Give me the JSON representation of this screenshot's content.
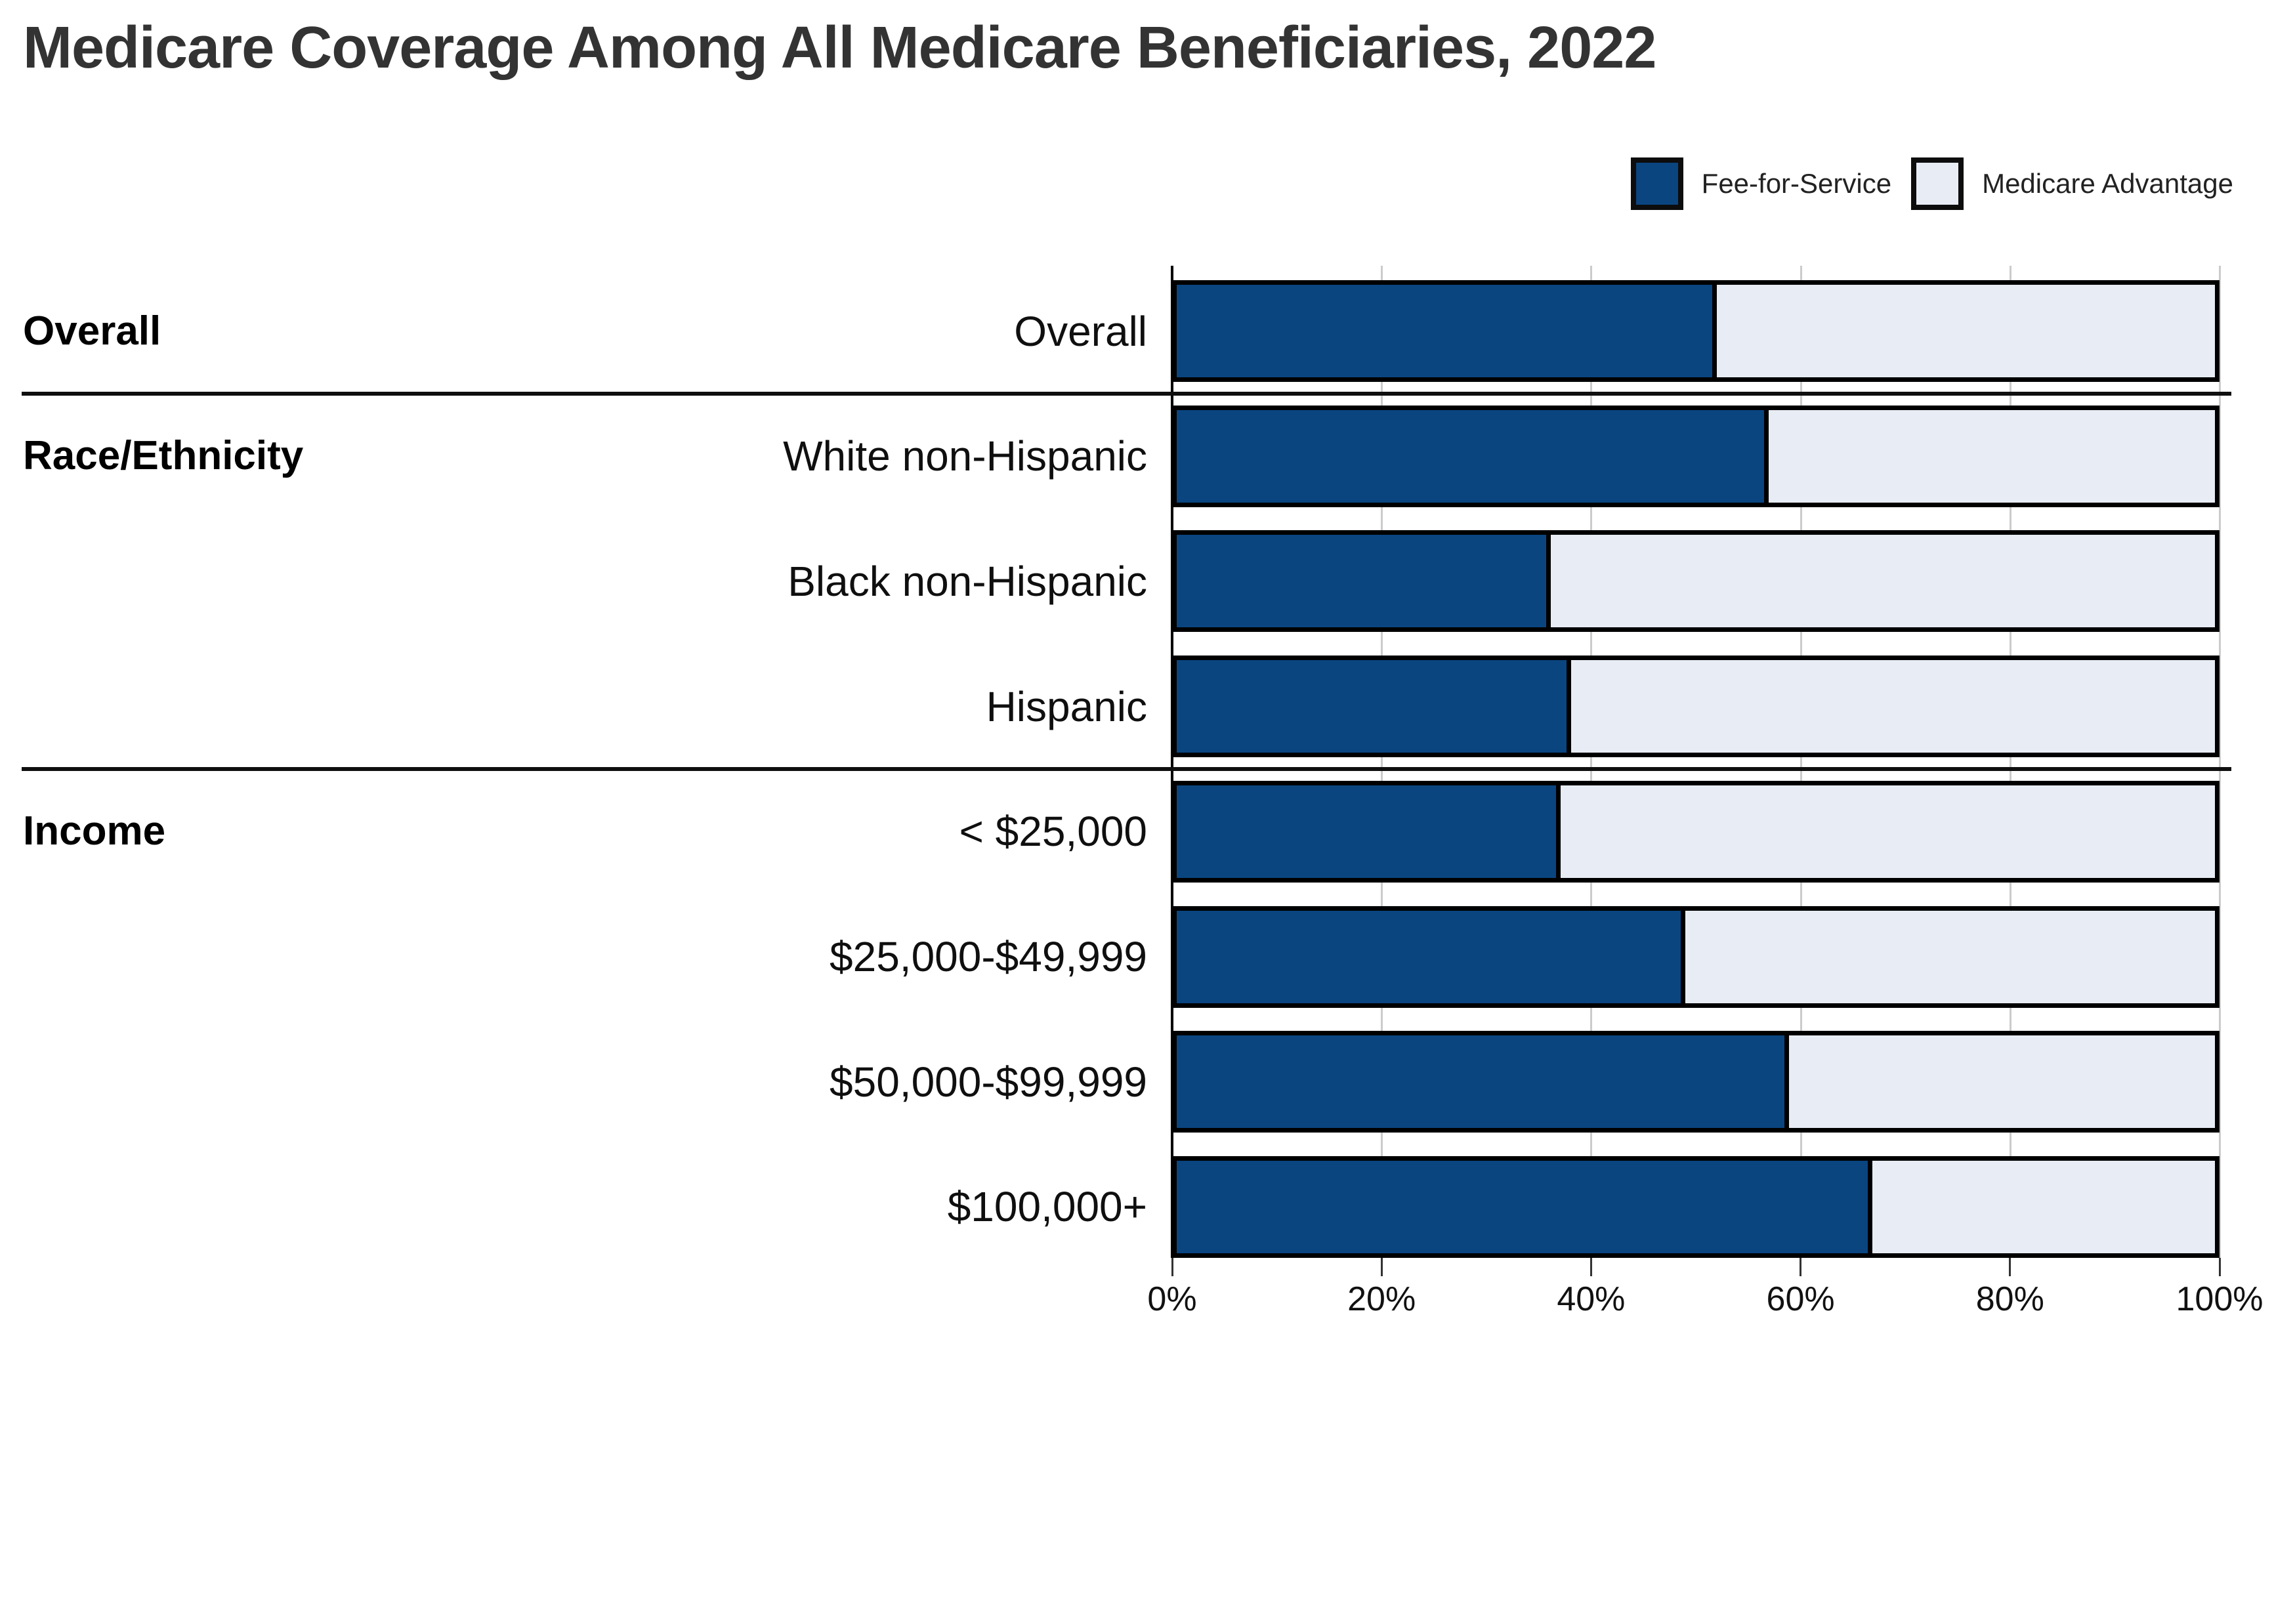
{
  "title": "Medicare Coverage Among All Medicare Beneficiaries, 2022",
  "legend": {
    "items": [
      {
        "label": "Fee-for-Service",
        "color": "#0a4580"
      },
      {
        "label": "Medicare Advantage",
        "color": "#e8ecf4"
      }
    ]
  },
  "colors": {
    "fee_for_service": "#0a4580",
    "medicare_advantage": "#e8ecf4",
    "bar_border": "#000000",
    "gridline": "#cbcbcb",
    "title_text": "#333333"
  },
  "chart_data": {
    "type": "bar",
    "orientation": "horizontal",
    "stacked": true,
    "title": "Medicare Coverage Among All Medicare Beneficiaries, 2022",
    "xlabel": "",
    "ylabel": "",
    "xlim": [
      0,
      100
    ],
    "x_tick_labels": [
      "0%",
      "20%",
      "40%",
      "60%",
      "80%",
      "100%"
    ],
    "grid": true,
    "legend_position": "top-right",
    "categories": [
      "Overall",
      "White non-Hispanic",
      "Black non-Hispanic",
      "Hispanic",
      "< $25,000",
      "$25,000-$49,999",
      "$50,000-$99,999",
      "$100,000+"
    ],
    "series": [
      {
        "name": "Fee-for-Service",
        "values": [
          52,
          57,
          36,
          38,
          37,
          49,
          59,
          67
        ]
      },
      {
        "name": "Medicare Advantage",
        "values": [
          48,
          43,
          64,
          62,
          63,
          51,
          41,
          33
        ]
      }
    ],
    "groups": [
      {
        "label": "Overall",
        "first_row": 0
      },
      {
        "label": "Race/Ethnicity",
        "first_row": 1
      },
      {
        "label": "Income",
        "first_row": 4
      }
    ]
  }
}
